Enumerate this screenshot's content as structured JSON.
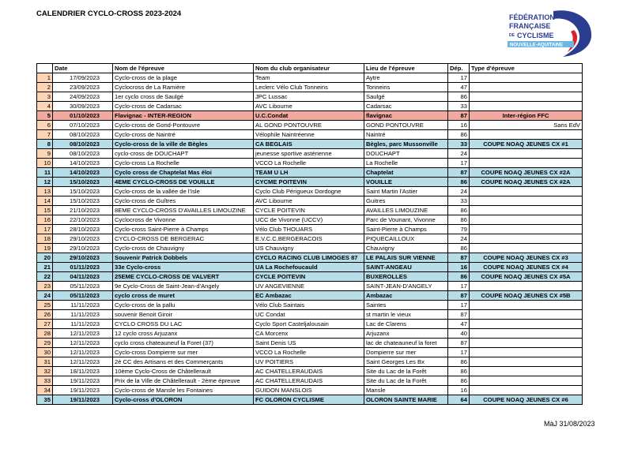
{
  "header": {
    "title": "CALENDRIER CYCLO-CROSS 2023-2024",
    "logo": [
      "FÉDÉRATION",
      "FRANÇAISE",
      "DE",
      "CYCLISME",
      "NOUVELLE-AQUITAINE"
    ]
  },
  "table": {
    "columns": [
      "Date",
      "Nom de l'épreuve",
      "Nom du club organisateur",
      "Lieu de l'épreuve",
      "Dép.",
      "Type d'épreuve"
    ],
    "rows": [
      {
        "n": 1,
        "date": "17/09/2023",
        "name": "Cyclo-cross de la plage",
        "club": "Team",
        "place": "Aytre",
        "dep": 17
      },
      {
        "n": 2,
        "date": "23/09/2023",
        "name": "Cyclocross de La Ramière",
        "club": "Leclerc Vélo Club Tonneins",
        "place": "Tonneins",
        "dep": 47
      },
      {
        "n": 3,
        "date": "24/09/2023",
        "name": "1er cyclo cross de Saulgé",
        "club": "JPC Lussac",
        "place": "Saulgé",
        "dep": 86
      },
      {
        "n": 4,
        "date": "30/09/2023",
        "name": "Cyclo-cross de Cadarsac",
        "club": "AVC Libourne",
        "place": "Cadarsac",
        "dep": 33
      },
      {
        "n": 5,
        "date": "01/10/2023",
        "name": "Flavignac - INTER-REGION",
        "club": "U.C.Condat",
        "place": "flavignac",
        "dep": 87,
        "type": "Inter-région FFC",
        "color": "#f2a9a0"
      },
      {
        "n": 6,
        "date": "07/10/2023",
        "name": "Cyclo-cross de Gond-Pontouvre",
        "club": "AL GOND PONTOUVRE",
        "place": "GOND PONTOUVRE",
        "dep": 16,
        "type": "Sans EdV"
      },
      {
        "n": 7,
        "date": "08/10/2023",
        "name": "Cyclo-cross de Naintré",
        "club": "Vélophile Naintréenne",
        "place": "Naintré",
        "dep": 86
      },
      {
        "n": 8,
        "date": "08/10/2023",
        "name": "Cyclo-cross de la ville de Bègles",
        "club": "CA BEGLAIS",
        "place": "Bègles, parc Mussonville",
        "dep": 33,
        "type": "COUPE NOAQ JEUNES CX #1",
        "color": "#b7dee8"
      },
      {
        "n": 9,
        "date": "08/10/2023",
        "name": "cyclo-cross de DOUCHAPT",
        "club": "jeunesse sportive astérienne",
        "place": "DOUCHAPT",
        "dep": 24
      },
      {
        "n": 10,
        "date": "14/10/2023",
        "name": "Cyclo-cross La Rochelle",
        "club": "VCCO La Rochelle",
        "place": "La Rochelle",
        "dep": 17
      },
      {
        "n": 11,
        "date": "14/10/2023",
        "name": "Cyclo cross de Chaptelat Mas éloi",
        "club": "TEAM U LH",
        "place": "Chaptelat",
        "dep": 87,
        "type": "COUPE NOAQ JEUNES CX #2A",
        "color": "#b7dee8"
      },
      {
        "n": 12,
        "date": "15/10/2023",
        "name": "4EME CYCLO-CROSS DE VOUILLE",
        "club": "CYCME POITEVIN",
        "place": "VOUILLE",
        "dep": 86,
        "type": "COUPE NOAQ JEUNES CX #2A",
        "color": "#b7dee8"
      },
      {
        "n": 13,
        "date": "15/10/2023",
        "name": "Cyclo-cross de la vallée de l'Isle",
        "club": "Cyclo Club Périgueux Dordogne",
        "place": "Saint Martin l'Astier",
        "dep": 24
      },
      {
        "n": 14,
        "date": "15/10/2023",
        "name": "Cyclo-cross de Guîtres",
        "club": "AVC Libourne",
        "place": "Guitres",
        "dep": 33
      },
      {
        "n": 15,
        "date": "21/10/2023",
        "name": "8EME CYCLO-CROSS D'AVAILLES LIMOUZINE",
        "club": "CYCLE POITEVIN",
        "place": "AVAILLES LIMOUZINE",
        "dep": 86
      },
      {
        "n": 16,
        "date": "22/10/2023",
        "name": "Cyclocross de Vivonne",
        "club": "UCC de Vivonne (UCCV)",
        "place": "Parc de Vounant, Vivonne",
        "dep": 86
      },
      {
        "n": 17,
        "date": "28/10/2023",
        "name": "Cyclo-cross Saint-Pierre à Champs",
        "club": "Vélo Club THOUARS",
        "place": "Saint-Pierre à Champs",
        "dep": 79
      },
      {
        "n": 18,
        "date": "29/10/2023",
        "name": "CYCLO-CROSS DE BERGERAC",
        "club": "E.V.C.C.BERGERACOIS",
        "place": "PIQUECAILLOUX",
        "dep": 24
      },
      {
        "n": 19,
        "date": "29/10/2023",
        "name": "Cyclo-cross de Chauvigny",
        "club": "US Chauvigny",
        "place": "Chauvigny",
        "dep": 86
      },
      {
        "n": 20,
        "date": "29/10/2023",
        "name": "Souvenir Patrick Dobbels",
        "club": "CYCLO RACING CLUB LIMOGES 87",
        "place": "LE PALAIS SUR VIENNE",
        "dep": 87,
        "type": "COUPE NOAQ JEUNES CX #3",
        "color": "#b7dee8"
      },
      {
        "n": 21,
        "date": "01/11/2023",
        "name": "33e Cyclo-cross",
        "club": "UA La Rochefoucauld",
        "place": "SAINT-ANGEAU",
        "dep": 16,
        "type": "COUPE NOAQ JEUNES CX #4",
        "color": "#b7dee8"
      },
      {
        "n": 22,
        "date": "04/11/2023",
        "name": "25EME CYCLO-CROSS DE VALVERT",
        "club": "CYCLE POITEVIN",
        "place": "BUXEROLLES",
        "dep": 86,
        "type": "COUPE NOAQ JEUNES CX #5A",
        "color": "#b7dee8"
      },
      {
        "n": 23,
        "date": "05/11/2023",
        "name": "9e Cyclo-Cross de Saint-Jean-d'Angely",
        "club": "UV ANGEVIENNE",
        "place": "SAINT-JEAN-D'ANGELY",
        "dep": 17
      },
      {
        "n": 24,
        "date": "05/11/2023",
        "name": "cyclo cross de muret",
        "club": "EC Ambazac",
        "place": "Ambazac",
        "dep": 87,
        "type": "COUPE NOAQ JEUNES CX #5B",
        "color": "#b7dee8"
      },
      {
        "n": 25,
        "date": "11/11/2023",
        "name": "Cyclo-cross de la pallu",
        "club": "Vélo Club Saintais",
        "place": "Saintes",
        "dep": 17
      },
      {
        "n": 26,
        "date": "11/11/2023",
        "name": "souvenir Benoit Giroir",
        "club": "UC Condat",
        "place": "st martin le vieux",
        "dep": 87
      },
      {
        "n": 27,
        "date": "11/11/2023",
        "name": "CYCLO CROSS DU LAC",
        "club": "Cyclo Sport Casteljalousain",
        "place": "Lac de Clarens",
        "dep": 47
      },
      {
        "n": 28,
        "date": "12/11/2023",
        "name": "12 cyclo cross Arjuzanx",
        "club": "CA Morcenx",
        "place": "Arjuzanx",
        "dep": 40
      },
      {
        "n": 29,
        "date": "12/11/2023",
        "name": "cyclo cross chateauneuf la Foret  (37)",
        "club": "Saint Denis US",
        "place": "lac de chateauneuf la foret",
        "dep": 87
      },
      {
        "n": 30,
        "date": "12/11/2023",
        "name": "Cyclo-cross Dompierre sur mer",
        "club": "VCCO La Rochelle",
        "place": "Dompierre sur mer",
        "dep": 17
      },
      {
        "n": 31,
        "date": "12/11/2023",
        "name": "2è CC des Artisans et des Commerçants",
        "club": "UV POITIERS",
        "place": "Saint Georges Les Bx",
        "dep": 86
      },
      {
        "n": 32,
        "date": "18/11/2023",
        "name": "10ème Cyclo-Cross de Châtellerault",
        "club": "AC CHATELLERAUDAIS",
        "place": "Site du Lac de la Forêt",
        "dep": 86
      },
      {
        "n": 33,
        "date": "19/11/2023",
        "name": "Prix de la Ville de Châtellerault - 2ème épreuve",
        "club": "AC CHATELLERAUDAIS",
        "place": "Site du Lac de la Forêt",
        "dep": 86
      },
      {
        "n": 34,
        "date": "19/11/2023",
        "name": "Cyclo-cross de Mansle les Fontaines",
        "club": "GUIDON MANSLOIS",
        "place": "Mansle",
        "dep": 16
      },
      {
        "n": 35,
        "date": "19/11/2023",
        "name": "Cyclo-cross d'OLORON",
        "club": "FC OLORON CYCLISME",
        "place": "OLORON SAINTE MARIE",
        "dep": 64,
        "type": "COUPE NOAQ JEUNES CX #6",
        "color": "#b7dee8"
      }
    ]
  },
  "footer": {
    "update": "MàJ 31/08/2023"
  }
}
